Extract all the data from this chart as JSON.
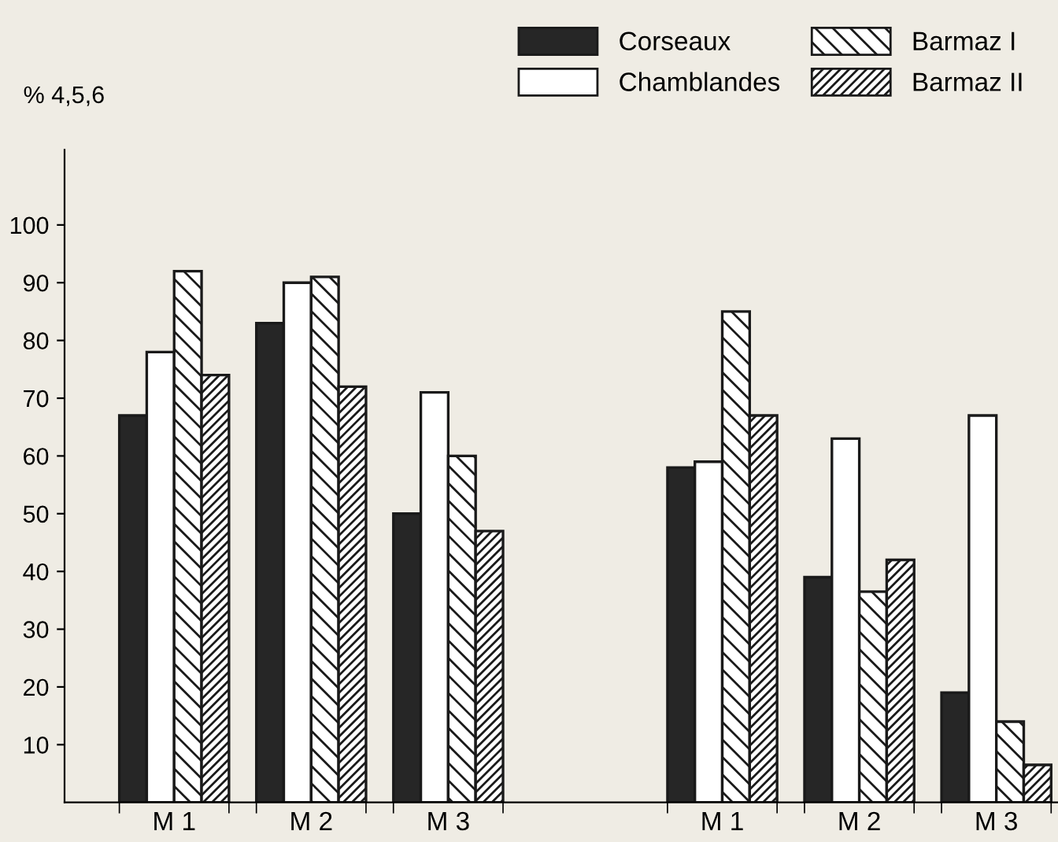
{
  "chart_data": {
    "type": "bar",
    "ylabel": "% 4,5,6",
    "categories": [
      "M 1",
      "M 2",
      "M 3",
      null,
      "M 1",
      "M 2",
      "M 3"
    ],
    "series": [
      {
        "name": "Corseaux",
        "color": "#262626",
        "values": [
          67,
          83,
          50,
          null,
          58,
          39,
          19
        ]
      },
      {
        "name": "Chamblandes",
        "color": "#ffffff",
        "values": [
          78,
          90,
          71,
          null,
          59,
          63,
          67
        ]
      },
      {
        "name": "Barmaz I",
        "color": "#1a1a1a",
        "values": [
          92,
          91,
          60,
          null,
          85,
          36.5,
          14
        ]
      },
      {
        "name": "Barmaz II",
        "color": "#1a1a1a",
        "values": [
          74,
          72,
          47,
          null,
          67,
          42,
          6.5
        ]
      }
    ],
    "ylim": [
      0,
      113
    ],
    "yticks": [
      10,
      20,
      30,
      40,
      50,
      60,
      70,
      80,
      90,
      100
    ],
    "grid": false,
    "legend": "top right"
  }
}
